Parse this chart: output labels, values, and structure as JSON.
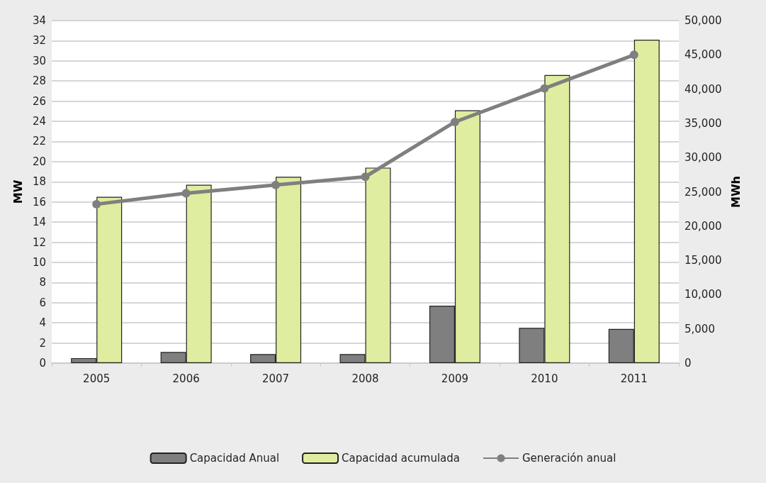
{
  "chart_data": {
    "type": "bar",
    "ylabel": "MW",
    "y2label": "MWh",
    "categories": [
      "2005",
      "2006",
      "2007",
      "2008",
      "2009",
      "2010",
      "2011"
    ],
    "series": [
      {
        "name": "Capacidad Anual",
        "color": "#7f7f7f",
        "values": [
          0.5,
          1.1,
          0.9,
          0.9,
          5.7,
          3.5,
          3.4
        ]
      },
      {
        "name": "Capacidad acumulada",
        "color": "#dfeda0",
        "values": [
          16.5,
          17.7,
          18.5,
          19.4,
          25.1,
          28.6,
          32.1
        ]
      },
      {
        "name": "Generación anual",
        "type": "line",
        "axis": "y2",
        "color": "#7f7f7f",
        "marker": "circle",
        "values": [
          23200,
          24800,
          26000,
          27200,
          35200,
          40100,
          45000
        ]
      }
    ],
    "ylim": [
      0,
      34
    ],
    "yticks": [
      0,
      2,
      4,
      6,
      8,
      10,
      12,
      14,
      16,
      18,
      20,
      22,
      24,
      26,
      28,
      30,
      32,
      34
    ],
    "y2lim": [
      0,
      50000
    ],
    "y2ticks": [
      {
        "value": 0,
        "label": "0"
      },
      {
        "value": 5000,
        "label": "5,000"
      },
      {
        "value": 10000,
        "label": "10,000"
      },
      {
        "value": 15000,
        "label": "15,000"
      },
      {
        "value": 20000,
        "label": "20,000"
      },
      {
        "value": 25000,
        "label": "25,000"
      },
      {
        "value": 30000,
        "label": "30,000"
      },
      {
        "value": 35000,
        "label": "35,000"
      },
      {
        "value": 40000,
        "label": "40,000"
      },
      {
        "value": 45000,
        "label": "45,000"
      },
      {
        "value": 50000,
        "label": "50,000"
      }
    ],
    "grid": "y",
    "legend": "bottom"
  }
}
